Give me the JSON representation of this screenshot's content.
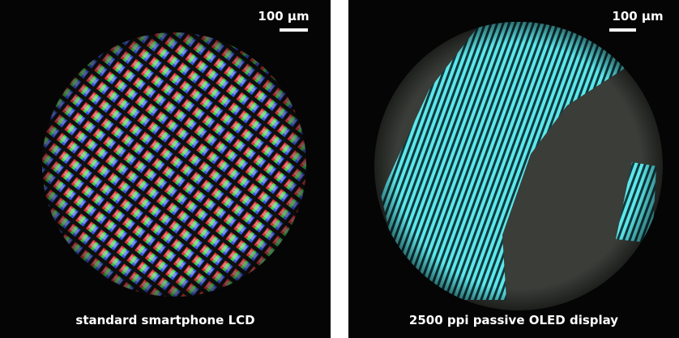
{
  "panels": [
    {
      "scale_label": "100 µm",
      "caption": "standard smartphone LCD"
    },
    {
      "scale_label": "100 µm",
      "caption": "2500 ppi passive OLED display"
    }
  ]
}
